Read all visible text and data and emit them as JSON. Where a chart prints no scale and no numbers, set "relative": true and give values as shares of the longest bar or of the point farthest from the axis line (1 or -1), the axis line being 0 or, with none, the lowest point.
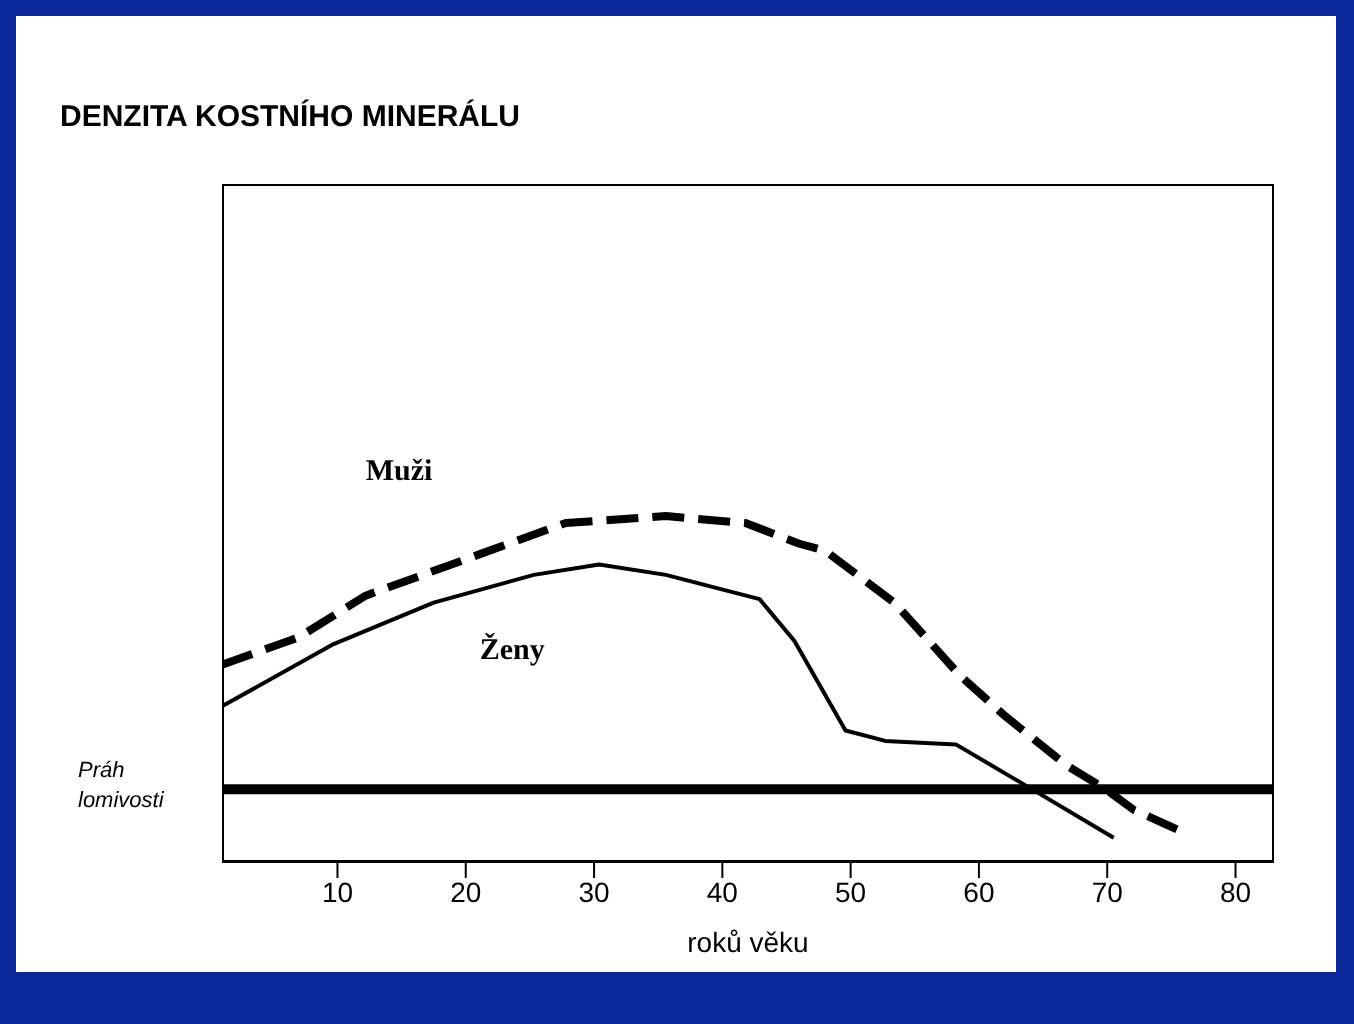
{
  "chart_data": {
    "type": "line",
    "title": "DENZITA KOSTNÍHO MINERÁLU",
    "xlabel": "roků věku",
    "relative": true,
    "xlim": [
      1,
      83
    ],
    "xticks": [
      10,
      20,
      30,
      40,
      50,
      60,
      70,
      80
    ],
    "grid": false,
    "legend": false,
    "series": [
      {
        "name": "Muži",
        "color": "#000000",
        "line_style": "dashed",
        "x": [
          1,
          7,
          12.2,
          21.1,
          27.8,
          35.6,
          41.8,
          46,
          48,
          53.4,
          58.5,
          62.1,
          66.8,
          69.9,
          72.1,
          75.7
        ],
        "values": [
          0.57,
          0.65,
          0.77,
          0.89,
          0.98,
          1,
          0.98,
          0.92,
          0.9,
          0.75,
          0.54,
          0.42,
          0.28,
          0.21,
          0.15,
          0.09
        ]
      },
      {
        "name": "Ženy",
        "color": "#000000",
        "line_style": "solid",
        "x": [
          1,
          9.7,
          17.5,
          25.3,
          30.4,
          35.6,
          42.9,
          45.6,
          49.6,
          52.7,
          58.2,
          63.7,
          70.5
        ],
        "values": [
          0.45,
          0.63,
          0.75,
          0.83,
          0.86,
          0.83,
          0.76,
          0.64,
          0.38,
          0.35,
          0.34,
          0.22,
          0.07
        ]
      }
    ],
    "ref_lines": [
      {
        "axis": "y",
        "value": 0.21,
        "label": "Práh lomivosti",
        "color": "#000000"
      }
    ]
  }
}
